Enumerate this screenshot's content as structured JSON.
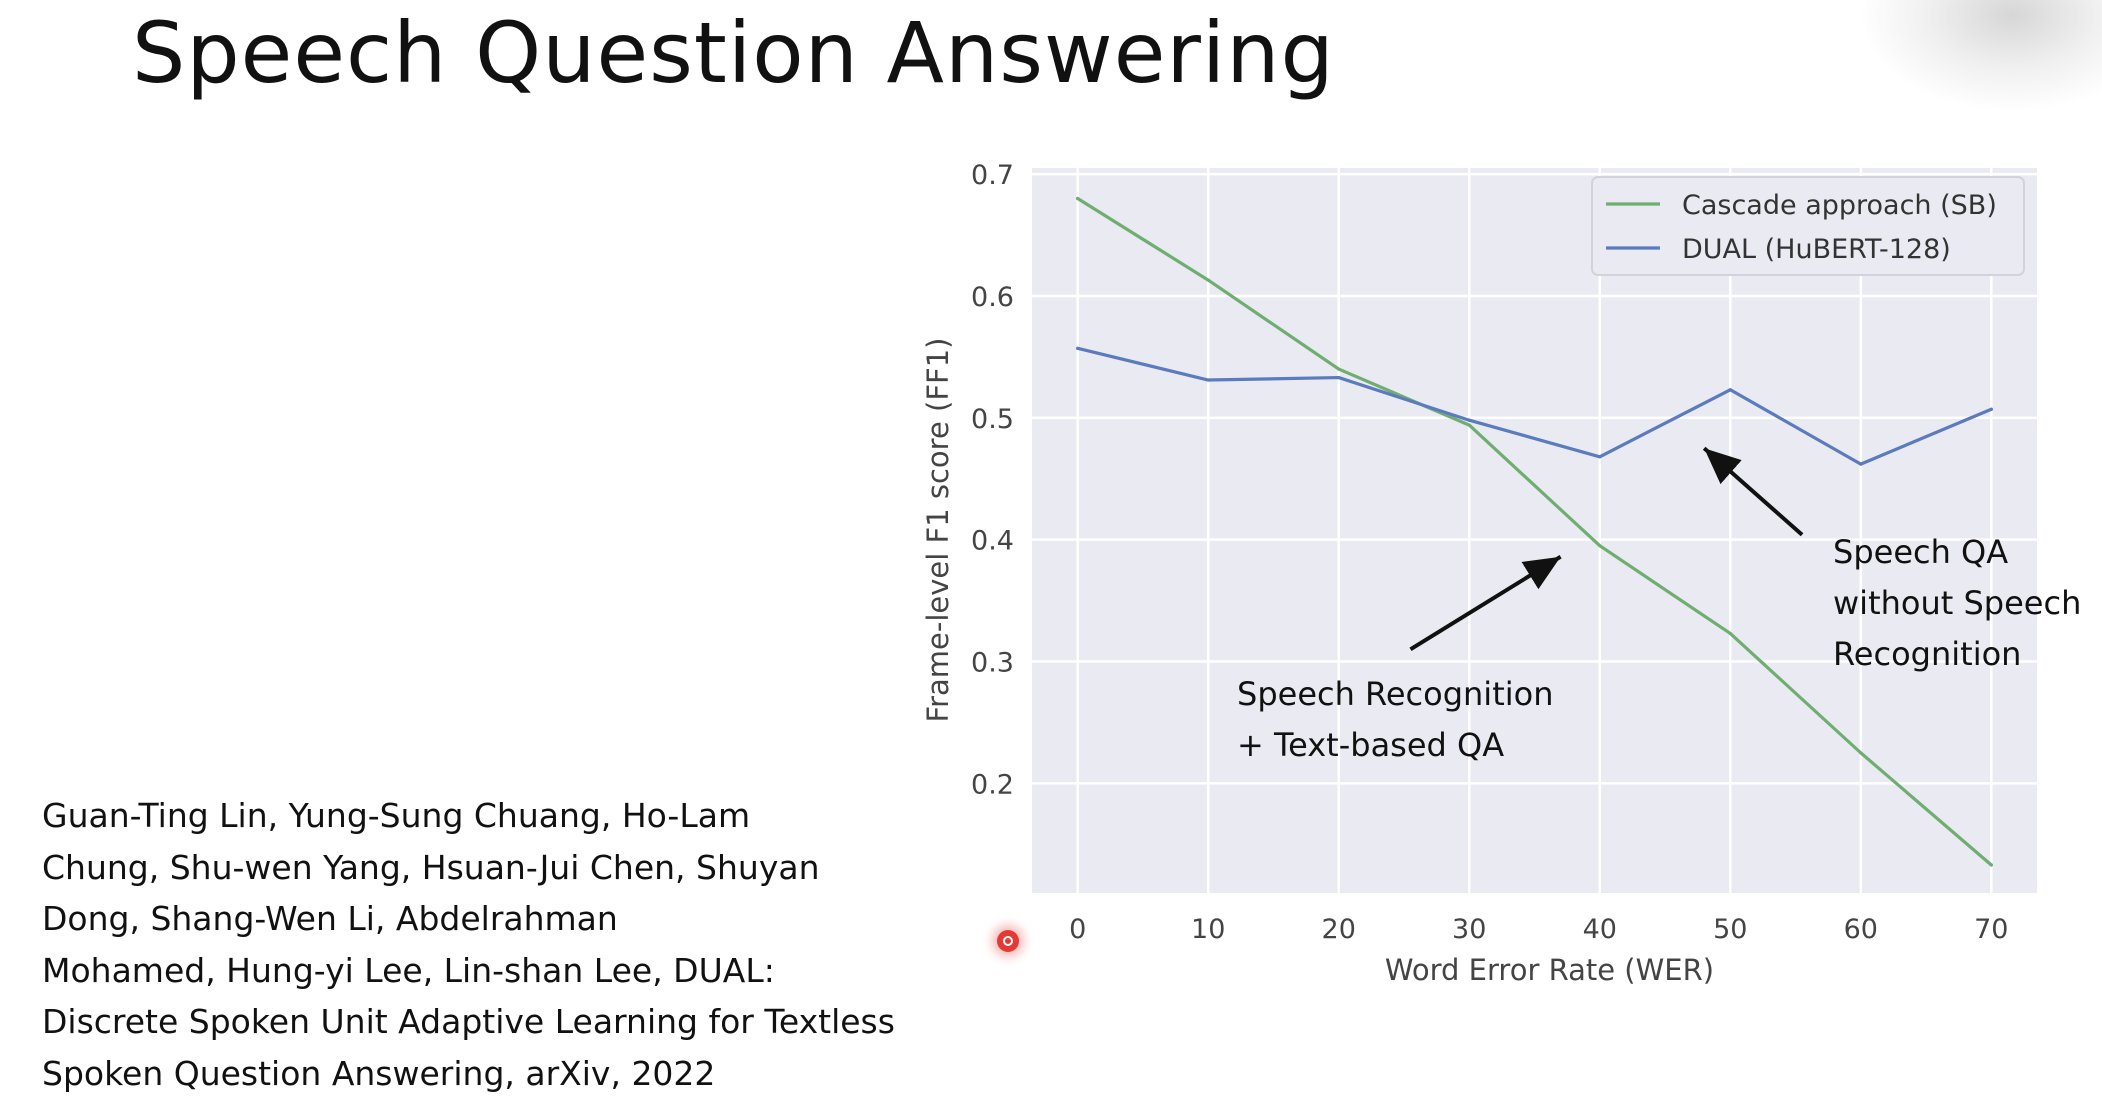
{
  "slide": {
    "title": "Speech Question Answering",
    "citation_lines": [
      "Guan-Ting Lin, Yung-Sung Chuang, Ho-Lam",
      "Chung, Shu-wen Yang, Hsuan-Jui Chen, Shuyan",
      "Dong, Shang-Wen Li, Abdelrahman",
      "Mohamed, Hung-yi Lee, Lin-shan Lee, DUAL:",
      "Discrete Spoken Unit Adaptive Learning for Textless",
      "Spoken Question Answering, arXiv, 2022"
    ]
  },
  "chart_data": {
    "type": "line",
    "title": "",
    "xlabel": "Word Error Rate (WER)",
    "ylabel": "Frame-level F1 score (FF1)",
    "x": [
      0,
      10,
      20,
      30,
      40,
      50,
      60,
      70
    ],
    "xticks": [
      "0",
      "10",
      "20",
      "30",
      "40",
      "50",
      "60",
      "70"
    ],
    "yticks": [
      "0.2",
      "0.3",
      "0.4",
      "0.5",
      "0.6",
      "0.7"
    ],
    "xlim": [
      -3.5,
      73.5
    ],
    "ylim": [
      0.11,
      0.705
    ],
    "grid": true,
    "legend_position": "top-right",
    "series": [
      {
        "name": "Cascade approach (SB)",
        "color": "#6fae70",
        "values": [
          0.68,
          0.613,
          0.54,
          0.494,
          0.395,
          0.323,
          0.225,
          0.133
        ]
      },
      {
        "name": "DUAL (HuBERT-128)",
        "color": "#5b7bbf",
        "values": [
          0.557,
          0.531,
          0.533,
          0.498,
          0.468,
          0.523,
          0.462,
          0.507
        ]
      }
    ],
    "annotations": [
      {
        "lines": [
          "Speech Recognition",
          "+ Text-based QA"
        ],
        "arrow_from": {
          "x": 25.5,
          "y": 0.31
        },
        "arrow_to": {
          "x": 37.0,
          "y": 0.386
        }
      },
      {
        "lines": [
          "Speech QA",
          "without Speech",
          "Recognition"
        ],
        "arrow_from": {
          "x": 55.5,
          "y": 0.404
        },
        "arrow_to": {
          "x": 48.0,
          "y": 0.475
        }
      }
    ]
  }
}
